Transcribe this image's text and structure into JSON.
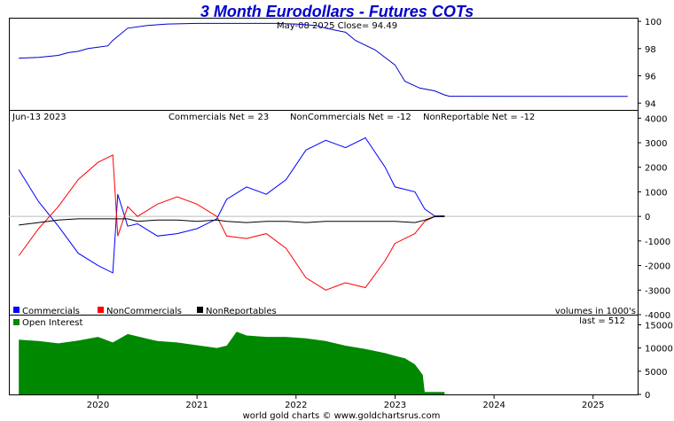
{
  "title": "3 Month Eurodollars - Futures COTs",
  "footer": "world gold charts © www.goldchartsrus.com",
  "colors": {
    "title": "#0000cc",
    "price": "#0000cc",
    "commercials": "#0000ff",
    "noncommercials": "#ff0000",
    "nonreportables": "#000000",
    "open_interest": "#008800",
    "frame": "#000000",
    "grid": "#bbbbbb"
  },
  "chart_data": [
    {
      "type": "line",
      "name": "price",
      "annotation": "May-08 2025   Close= 94.49",
      "ylim": [
        93.5,
        100.2
      ],
      "yticks": [
        94,
        96,
        98,
        100
      ],
      "x": [
        2019.2,
        2019.4,
        2019.6,
        2019.7,
        2019.8,
        2019.9,
        2020.0,
        2020.1,
        2020.15,
        2020.3,
        2020.5,
        2020.7,
        2021.0,
        2021.3,
        2021.5,
        2021.8,
        2022.0,
        2022.2,
        2022.3,
        2022.5,
        2022.6,
        2022.8,
        2023.0,
        2023.1,
        2023.25,
        2023.4,
        2023.5,
        2023.55,
        2025.35
      ],
      "y": [
        97.3,
        97.35,
        97.5,
        97.7,
        97.8,
        98.0,
        98.1,
        98.2,
        98.6,
        99.5,
        99.7,
        99.8,
        99.85,
        99.85,
        99.85,
        99.85,
        99.8,
        99.7,
        99.5,
        99.2,
        98.6,
        97.9,
        96.8,
        95.6,
        95.1,
        94.9,
        94.6,
        94.5,
        94.49
      ]
    },
    {
      "type": "line",
      "name": "cot_net",
      "header_left": "Jun-13  2023",
      "header_stats": [
        "Commercials Net = 23",
        "NonCommercials Net = -12",
        "NonReportable Net = -12"
      ],
      "ylim": [
        -4000,
        4300
      ],
      "yticks": [
        -4000,
        -3000,
        -2000,
        -1000,
        0,
        1000,
        2000,
        3000,
        4000
      ],
      "legend": "bottom-left",
      "x": [
        2019.2,
        2019.4,
        2019.6,
        2019.8,
        2020.0,
        2020.15,
        2020.2,
        2020.3,
        2020.4,
        2020.6,
        2020.8,
        2021.0,
        2021.2,
        2021.3,
        2021.5,
        2021.7,
        2021.9,
        2022.1,
        2022.3,
        2022.5,
        2022.7,
        2022.9,
        2023.0,
        2023.2,
        2023.3,
        2023.4,
        2023.5
      ],
      "series": [
        {
          "name": "Commercials",
          "values": [
            1900,
            600,
            -400,
            -1500,
            -2000,
            -2300,
            900,
            -400,
            -300,
            -800,
            -700,
            -500,
            -100,
            700,
            1200,
            900,
            1500,
            2700,
            3100,
            2800,
            3200,
            2000,
            1200,
            1000,
            300,
            20,
            23
          ]
        },
        {
          "name": "NonCommercials",
          "values": [
            -1600,
            -500,
            400,
            1500,
            2200,
            2500,
            -800,
            400,
            0,
            500,
            800,
            500,
            0,
            -800,
            -900,
            -700,
            -1300,
            -2500,
            -3000,
            -2700,
            -2900,
            -1800,
            -1100,
            -700,
            -200,
            -10,
            -12
          ]
        },
        {
          "name": "NonReportables",
          "values": [
            -350,
            -250,
            -150,
            -100,
            -100,
            -100,
            -100,
            -100,
            -200,
            -150,
            -150,
            -200,
            -150,
            -200,
            -250,
            -200,
            -200,
            -250,
            -200,
            -200,
            -200,
            -200,
            -200,
            -250,
            -150,
            -10,
            -12
          ]
        }
      ]
    },
    {
      "type": "area",
      "name": "open_interest",
      "units": "volumes in 1000's",
      "last": "last = 512",
      "legend": "top-left",
      "ylim": [
        0,
        17000
      ],
      "yticks": [
        0,
        5000,
        10000,
        15000
      ],
      "xticks": [
        "2020",
        "2021",
        "2022",
        "2023",
        "2024",
        "2025"
      ],
      "x": [
        2019.2,
        2019.4,
        2019.6,
        2019.8,
        2020.0,
        2020.15,
        2020.3,
        2020.5,
        2020.6,
        2020.8,
        2021.0,
        2021.2,
        2021.3,
        2021.4,
        2021.5,
        2021.7,
        2021.9,
        2022.1,
        2022.3,
        2022.5,
        2022.7,
        2022.9,
        2023.0,
        2023.1,
        2023.2,
        2023.28,
        2023.3,
        2023.5
      ],
      "values": [
        11800,
        11500,
        11000,
        11600,
        12400,
        11200,
        13000,
        12000,
        11500,
        11200,
        10600,
        10000,
        10500,
        13500,
        12700,
        12400,
        12400,
        12100,
        11500,
        10500,
        9800,
        8900,
        8300,
        7800,
        6500,
        4200,
        512,
        512
      ]
    }
  ]
}
